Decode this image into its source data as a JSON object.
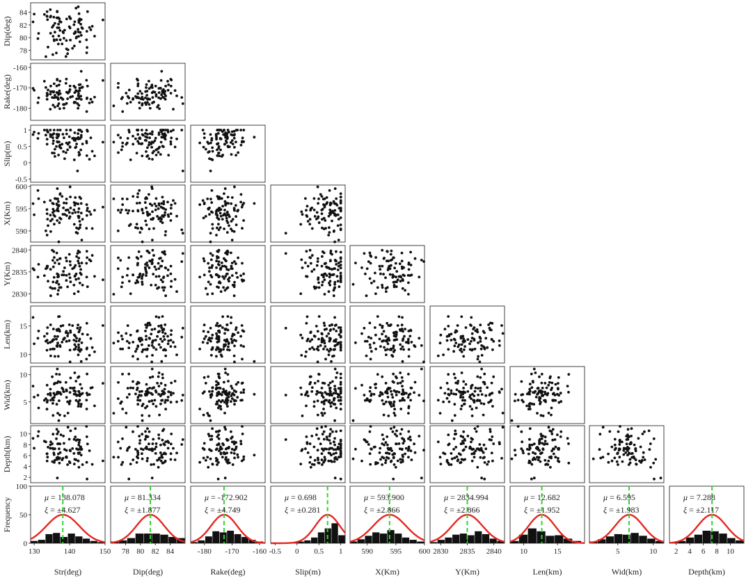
{
  "chart_data": {
    "type": "scatter",
    "title": "",
    "layout": "lower-triangular scatter matrix with marginal histograms and fitted normal curves on the bottom row",
    "variables": [
      "Str",
      "Dip",
      "Rake",
      "Slip",
      "X",
      "Y",
      "Len",
      "Wid",
      "Depth"
    ],
    "column_labels": [
      "Str(deg)",
      "Dip(deg)",
      "Rake(deg)",
      "Slip(m)",
      "X(Km)",
      "Y(Km)",
      "Len(km)",
      "Wid(km)",
      "Depth(km)"
    ],
    "row_labels": [
      "Dip(deg)",
      "Rake(deg)",
      "Slip(m)",
      "X(Km)",
      "Y(Km)",
      "Len(km)",
      "Wid(km)",
      "Depth(km)",
      "Frequency"
    ],
    "x_axis_ranges": [
      [
        129,
        150
      ],
      [
        76,
        86
      ],
      [
        -185,
        -158
      ],
      [
        -0.6,
        1.1
      ],
      [
        587,
        600
      ],
      [
        2828,
        2842
      ],
      [
        8,
        19
      ],
      [
        1,
        11.5
      ],
      [
        1,
        12
      ]
    ],
    "x_ticks": [
      [
        "130",
        "140",
        "150"
      ],
      [
        "78",
        "80",
        "82",
        "84"
      ],
      [
        "-180",
        "-170",
        "-160"
      ],
      [
        "-0.5",
        "0",
        "0.5",
        "1"
      ],
      [
        "590",
        "595",
        "600"
      ],
      [
        "2830",
        "2835",
        "2840"
      ],
      [
        "10",
        "15"
      ],
      [
        "5",
        "10"
      ],
      [
        "2",
        "4",
        "6",
        "8",
        "10"
      ]
    ],
    "y_axis_ranges": [
      [
        76.5,
        85.5
      ],
      [
        -186,
        -158
      ],
      [
        -0.6,
        1.15
      ],
      [
        587.5,
        600.3
      ],
      [
        2828,
        2841
      ],
      [
        8.5,
        18.5
      ],
      [
        1,
        11.5
      ],
      [
        1,
        11.5
      ]
    ],
    "y_ticks": [
      [
        "78",
        "80",
        "82",
        "84"
      ],
      [
        "-180",
        "-170",
        "-160"
      ],
      [
        "-0.5",
        "0",
        "0.5",
        "1"
      ],
      [
        "590",
        "595",
        "600"
      ],
      [
        "2830",
        "2835",
        "2840"
      ],
      [
        "10",
        "15"
      ],
      [
        "5",
        "10"
      ],
      [
        "2",
        "4",
        "6",
        "8",
        "10"
      ]
    ],
    "freq_y_range": [
      0,
      100
    ],
    "freq_y_ticks": [
      "0",
      "50",
      "100"
    ],
    "ylabel_hist": "Frequency",
    "stats": [
      {
        "variable": "Str",
        "mu": "138.078",
        "xi": "±4.627",
        "mean": 138.078,
        "sd": 4.627
      },
      {
        "variable": "Dip",
        "mu": "81.334",
        "xi": "±1.877",
        "mean": 81.334,
        "sd": 1.877
      },
      {
        "variable": "Rake",
        "mu": "-172.902",
        "xi": "±4.749",
        "mean": -172.902,
        "sd": 4.749
      },
      {
        "variable": "Slip",
        "mu": "0.698",
        "xi": "±0.281",
        "mean": 0.698,
        "sd": 0.281
      },
      {
        "variable": "X",
        "mu": "593.900",
        "xi": "±2.866",
        "mean": 593.9,
        "sd": 2.866
      },
      {
        "variable": "Y",
        "mu": "2834.994",
        "xi": "±2.866",
        "mean": 2834.994,
        "sd": 2.866
      },
      {
        "variable": "Len",
        "mu": "12.682",
        "xi": "±1.952",
        "mean": 12.682,
        "sd": 1.952
      },
      {
        "variable": "Wid",
        "mu": "6.595",
        "xi": "±1.983",
        "mean": 6.595,
        "sd": 1.983
      },
      {
        "variable": "Depth",
        "mu": "7.288",
        "xi": "±2.117",
        "mean": 7.288,
        "sd": 2.117
      }
    ],
    "histograms": [
      [
        4,
        6,
        16,
        18,
        11,
        17,
        12,
        8,
        4,
        2
      ],
      [
        3,
        5,
        9,
        17,
        17,
        17,
        15,
        11,
        9
      ],
      [
        2,
        5,
        12,
        21,
        19,
        22,
        16,
        11,
        6,
        3
      ],
      [
        2,
        3,
        5,
        10,
        19,
        26,
        35,
        14
      ],
      [
        3,
        7,
        13,
        19,
        17,
        23,
        17,
        10,
        6,
        3
      ],
      [
        2,
        6,
        10,
        15,
        17,
        14,
        21,
        16,
        8,
        4
      ],
      [
        4,
        15,
        26,
        21,
        13,
        14,
        8,
        4
      ],
      [
        3,
        7,
        12,
        16,
        15,
        18,
        13,
        8,
        4
      ],
      [
        2,
        4,
        10,
        15,
        22,
        21,
        17,
        9,
        5
      ]
    ],
    "sample_count": 100,
    "curve_peak": 50,
    "grid": false,
    "marker_color": "#111111",
    "curve_color": "#e5261f",
    "mean_line_color": "#2fd52f",
    "bar_color": "#111111"
  }
}
